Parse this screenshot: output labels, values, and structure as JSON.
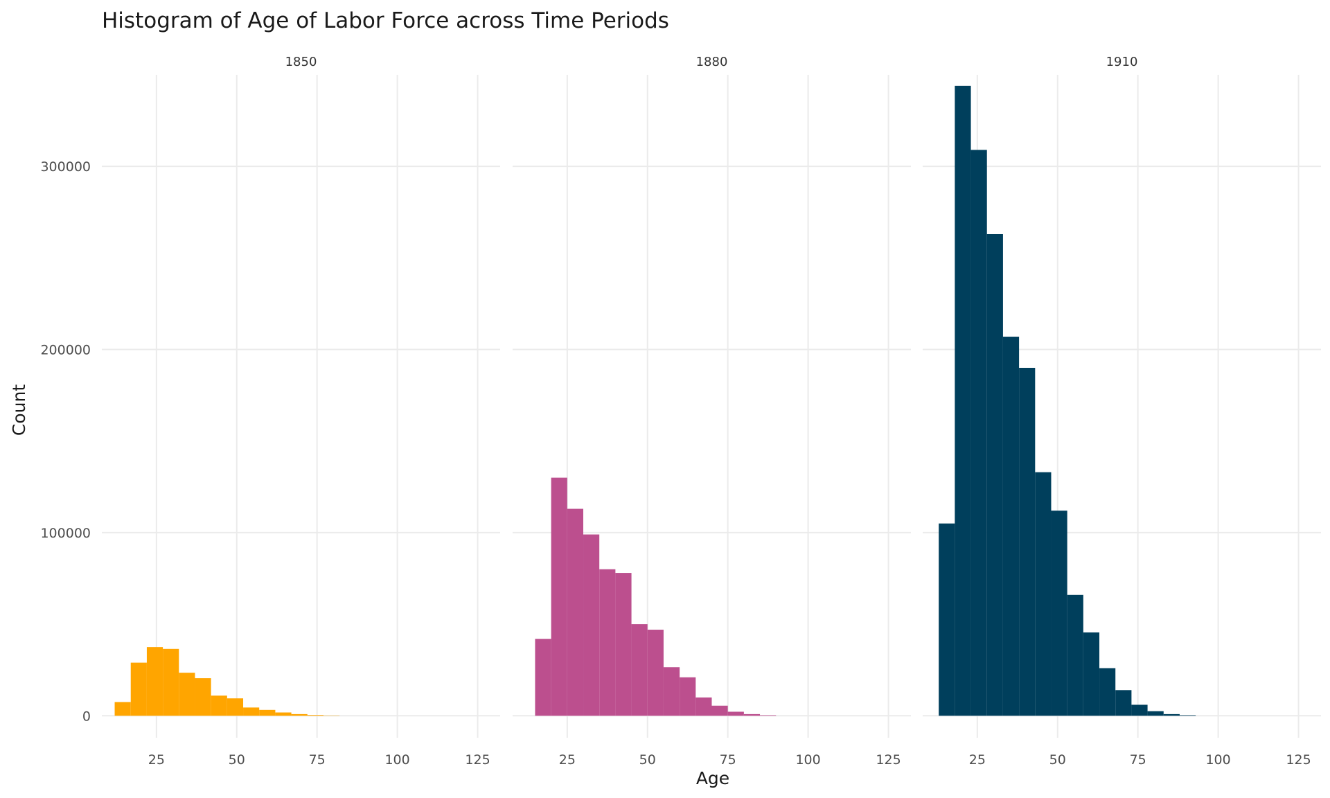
{
  "chart_data": {
    "type": "bar",
    "title": "Histogram of Age of Labor Force across Time Periods",
    "xlabel": "Age",
    "ylabel": "Count",
    "xlim": [
      8,
      132
    ],
    "ylim": [
      -12000,
      350000
    ],
    "x_ticks": [
      25,
      50,
      75,
      100,
      125
    ],
    "y_ticks": [
      0,
      100000,
      200000,
      300000
    ],
    "grid": true,
    "bin_width": 5,
    "facets": [
      {
        "name": "1850",
        "color": "#FFA500",
        "bin_starts": [
          12,
          17,
          22,
          27,
          32,
          37,
          42,
          47,
          52,
          57,
          62,
          67,
          72,
          77
        ],
        "values": [
          7500,
          29000,
          37500,
          36500,
          23500,
          20500,
          11000,
          9500,
          4500,
          3200,
          1800,
          900,
          400,
          150
        ]
      },
      {
        "name": "1880",
        "color": "#BC4F8E",
        "bin_starts": [
          15,
          20,
          25,
          30,
          35,
          40,
          45,
          50,
          55,
          60,
          65,
          70,
          75,
          80,
          85
        ],
        "values": [
          42000,
          130000,
          113000,
          99000,
          80000,
          78000,
          50000,
          47000,
          26500,
          21000,
          10000,
          5500,
          2200,
          900,
          300
        ]
      },
      {
        "name": "1910",
        "color": "#003F5C",
        "bin_starts": [
          13,
          18,
          23,
          28,
          33,
          38,
          43,
          48,
          53,
          58,
          63,
          68,
          73,
          78,
          83,
          88
        ],
        "values": [
          105000,
          344000,
          309000,
          263000,
          207000,
          190000,
          133000,
          112000,
          66000,
          45500,
          26000,
          14000,
          6000,
          2500,
          900,
          300
        ]
      }
    ]
  }
}
